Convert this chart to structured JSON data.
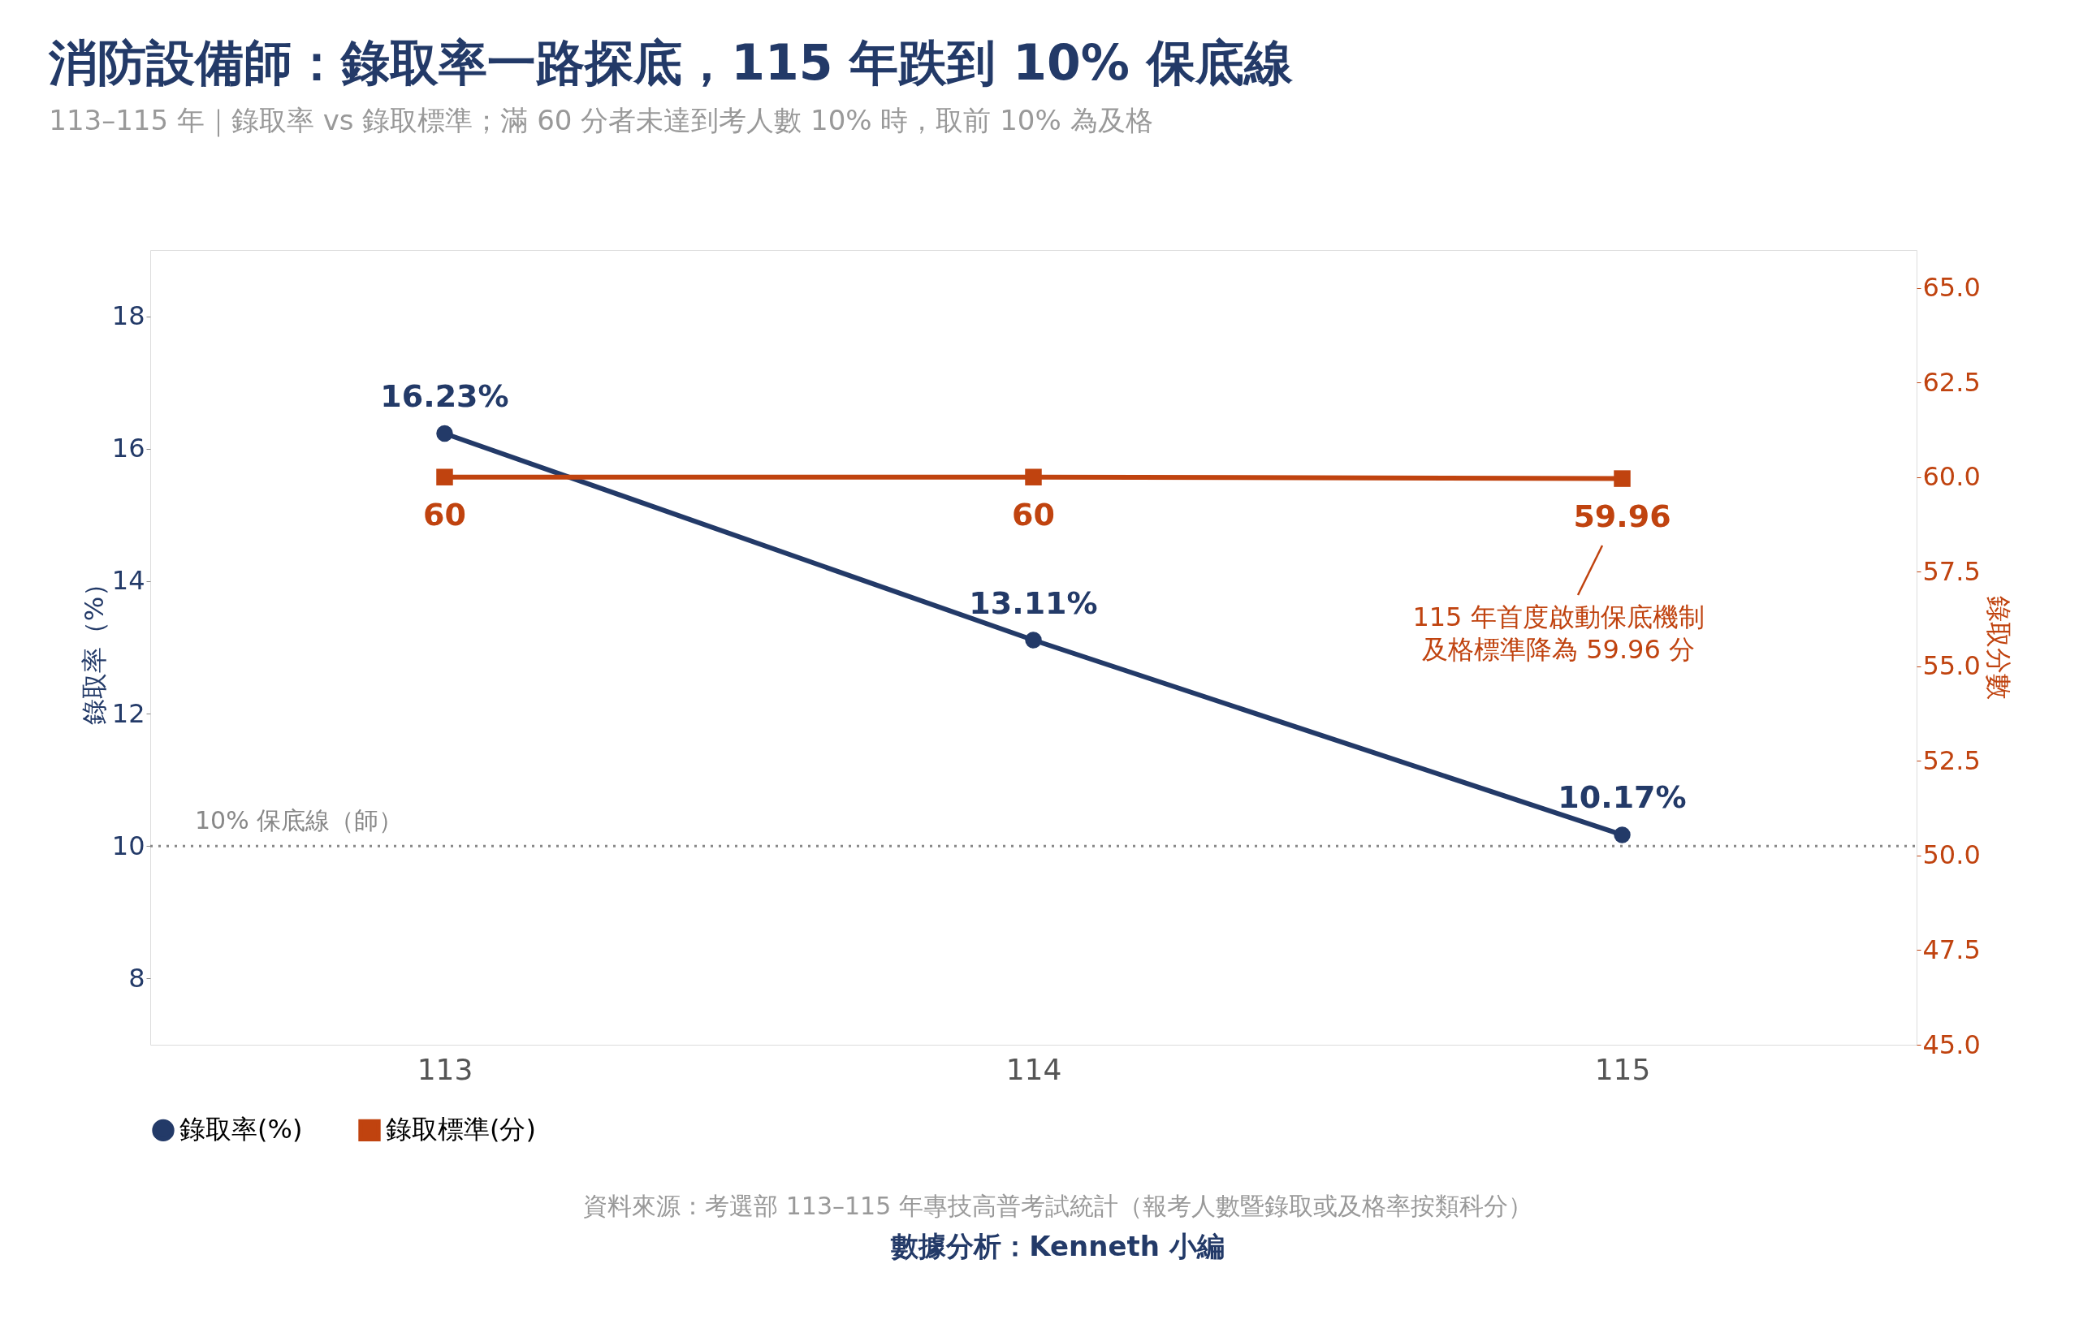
{
  "chart_data": {
    "type": "line",
    "title": "消防設備師：錄取率一路探底，115 年跌到 10% 保底線",
    "subtitle": "113–115 年｜錄取率 vs 錄取標準；滿 60 分者未達到考人數 10% 時，取前 10% 為及格",
    "ylabel": "錄取率（%）",
    "y2label": "錄取分數",
    "x": [
      113,
      114,
      115
    ],
    "xlim": [
      112.5,
      115.5
    ],
    "xticks": [
      113,
      114,
      115
    ],
    "ylim": [
      7,
      19
    ],
    "yticks": [
      8,
      10,
      12,
      14,
      16,
      18
    ],
    "y2lim": [
      45,
      66
    ],
    "y2ticks": [
      {
        "value": 45,
        "label": "45.0"
      },
      {
        "value": 47.5,
        "label": "47.5"
      },
      {
        "value": 50,
        "label": "50.0"
      },
      {
        "value": 52.5,
        "label": "52.5"
      },
      {
        "value": 55,
        "label": "55.0"
      },
      {
        "value": 57.5,
        "label": "57.5"
      },
      {
        "value": 60,
        "label": "60.0"
      },
      {
        "value": 62.5,
        "label": "62.5"
      },
      {
        "value": 65,
        "label": "65.0"
      }
    ],
    "series": [
      {
        "name": "錄取率(%)",
        "color": "#233a68",
        "values": [
          16.23,
          13.11,
          10.17
        ],
        "value_labels": [
          "16.23%",
          "13.11%",
          "10.17%"
        ],
        "marker": "circle"
      },
      {
        "name": "錄取標準(分)",
        "color": "#c0430f",
        "values": [
          60,
          60,
          59.96
        ],
        "value_labels": [
          "60",
          "60",
          "59.96"
        ],
        "marker": "square",
        "axis": "y2"
      }
    ],
    "ref_lines": [
      {
        "axis": "y",
        "value": 10,
        "label": "10% 保底線（師）",
        "color": "#888888",
        "line_style": "dotted"
      }
    ],
    "annotations": [
      "115 年首度啟動保底機制",
      "及格標準降為 59.96 分",
      "資料來源：考選部 113–115 年專技高普考試統計（報考人數暨錄取或及格率按類科分）",
      "數據分析：Kenneth 小編"
    ],
    "legend": "bottom",
    "grid": false,
    "line_style": "solid"
  }
}
